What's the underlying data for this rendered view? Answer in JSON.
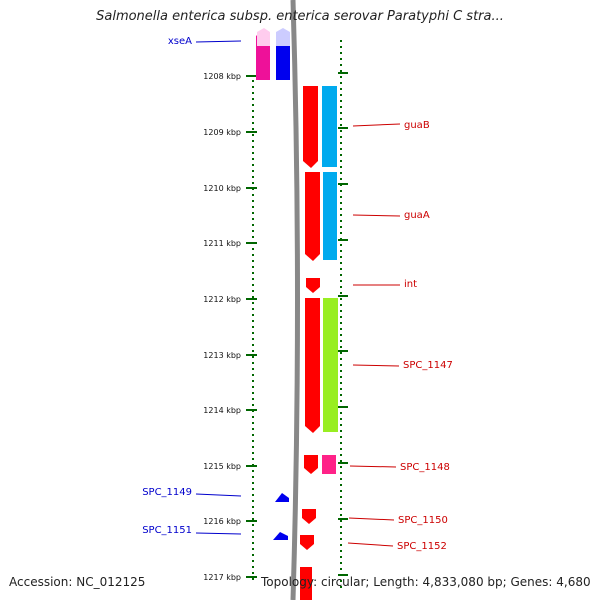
{
  "title": "Salmonella enterica subsp. enterica serovar Paratyphi C stra...",
  "footer": {
    "accession": "Accession: NC_012125",
    "topology": "Topology: circular; Length: 4,833,080 bp; Genes: 4,680"
  },
  "colors": {
    "forward_label": "#0000cc",
    "reverse_label": "#cc0000",
    "scale_ticks": "#006600",
    "backbone": "#888888"
  },
  "scale_labels": [
    "1208 kbp",
    "1209 kbp",
    "1210 kbp",
    "1211 kbp",
    "1212 kbp",
    "1213 kbp",
    "1214 kbp",
    "1215 kbp",
    "1216 kbp",
    "1217 kbp"
  ],
  "forward_genes": [
    {
      "label": "xseA",
      "color": "#ee1199"
    },
    {
      "label": "SPC_1149",
      "color": "#0000ee"
    },
    {
      "label": "SPC_1151",
      "color": "#0000ee"
    }
  ],
  "reverse_genes": [
    {
      "label": "guaB",
      "color": "#ff0000"
    },
    {
      "label": "guaA",
      "color": "#ff0000"
    },
    {
      "label": "int",
      "color": "#ff0000"
    },
    {
      "label": "SPC_1147",
      "color": "#ff0000"
    },
    {
      "label": "SPC_1148",
      "color": "#ff0000"
    },
    {
      "label": "SPC_1150",
      "color": "#ff0000"
    },
    {
      "label": "SPC_1152",
      "color": "#ff0000"
    }
  ]
}
